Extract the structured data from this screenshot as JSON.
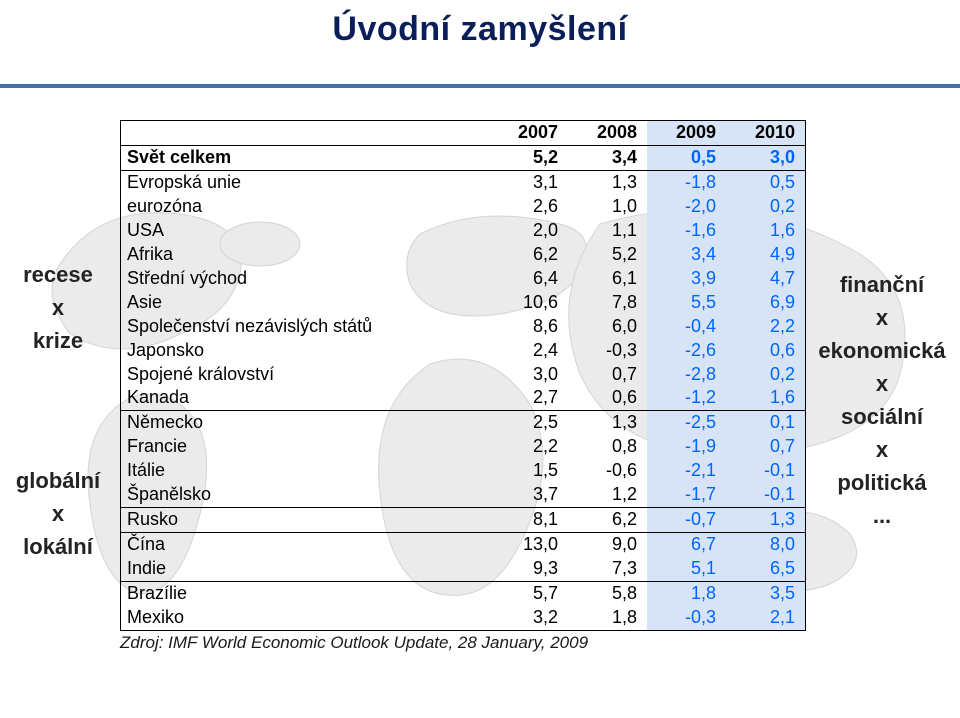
{
  "title": "Úvodní zamyšlení",
  "left_label_top": "recese\nx\nkrize",
  "left_label_bottom": "globální\nx\nlokální",
  "right_label": "finanční\nx\nekonomická\nx\nsociální\nx\npolitická\n...",
  "columns": [
    "",
    "2007",
    "2008",
    "2009",
    "2010"
  ],
  "sections": [
    {
      "rows": [
        {
          "name": "Svět celkem",
          "vals": [
            "5,2",
            "3,4",
            "0,5",
            "3,0"
          ],
          "bold": true
        }
      ]
    },
    {
      "rows": [
        {
          "name": "Evropská unie",
          "vals": [
            "3,1",
            "1,3",
            "-1,8",
            "0,5"
          ]
        },
        {
          "name": "eurozóna",
          "vals": [
            "2,6",
            "1,0",
            "-2,0",
            "0,2"
          ]
        },
        {
          "name": "USA",
          "vals": [
            "2,0",
            "1,1",
            "-1,6",
            "1,6"
          ]
        },
        {
          "name": "Afrika",
          "vals": [
            "6,2",
            "5,2",
            "3,4",
            "4,9"
          ]
        },
        {
          "name": "Střední východ",
          "vals": [
            "6,4",
            "6,1",
            "3,9",
            "4,7"
          ]
        },
        {
          "name": "Asie",
          "vals": [
            "10,6",
            "7,8",
            "5,5",
            "6,9"
          ]
        },
        {
          "name": "Společenství nezávislých států",
          "vals": [
            "8,6",
            "6,0",
            "-0,4",
            "2,2"
          ]
        },
        {
          "name": "Japonsko",
          "vals": [
            "2,4",
            "-0,3",
            "-2,6",
            "0,6"
          ]
        },
        {
          "name": "Spojené království",
          "vals": [
            "3,0",
            "0,7",
            "-2,8",
            "0,2"
          ]
        },
        {
          "name": "Kanada",
          "vals": [
            "2,7",
            "0,6",
            "-1,2",
            "1,6"
          ]
        }
      ]
    },
    {
      "indent": 2,
      "rows": [
        {
          "name": "Německo",
          "vals": [
            "2,5",
            "1,3",
            "-2,5",
            "0,1"
          ]
        },
        {
          "name": "Francie",
          "vals": [
            "2,2",
            "0,8",
            "-1,9",
            "0,7"
          ]
        },
        {
          "name": "Itálie",
          "vals": [
            "1,5",
            "-0,6",
            "-2,1",
            "-0,1"
          ]
        },
        {
          "name": "Španělsko",
          "vals": [
            "3,7",
            "1,2",
            "-1,7",
            "-0,1"
          ]
        }
      ]
    },
    {
      "indent": 1,
      "rows": [
        {
          "name": "Rusko",
          "vals": [
            "8,1",
            "6,2",
            "-0,7",
            "1,3"
          ]
        }
      ]
    },
    {
      "indent": 1,
      "rows": [
        {
          "name": "Čína",
          "vals": [
            "13,0",
            "9,0",
            "6,7",
            "8,0"
          ]
        },
        {
          "name": "Indie",
          "vals": [
            "9,3",
            "7,3",
            "5,1",
            "6,5"
          ]
        }
      ]
    },
    {
      "indent": 1,
      "rows": [
        {
          "name": "Brazílie",
          "vals": [
            "5,7",
            "5,8",
            "1,8",
            "3,5"
          ]
        },
        {
          "name": "Mexiko",
          "vals": [
            "3,2",
            "1,8",
            "-0,3",
            "2,1"
          ]
        }
      ]
    }
  ],
  "highlight_cols": {
    "col_index_first": 2,
    "col_index_last": 3,
    "color": "#0066ff"
  },
  "highlight_bg_color": "#d7e3f7",
  "source": "Zdroj: IMF World Economic Outlook Update, 28 January, 2009",
  "map_colors": {
    "land": "#e9e9e9",
    "border": "#d0d0d0"
  },
  "header_underline_color": "#4a6fa6",
  "title_color": "#0a1f5a"
}
